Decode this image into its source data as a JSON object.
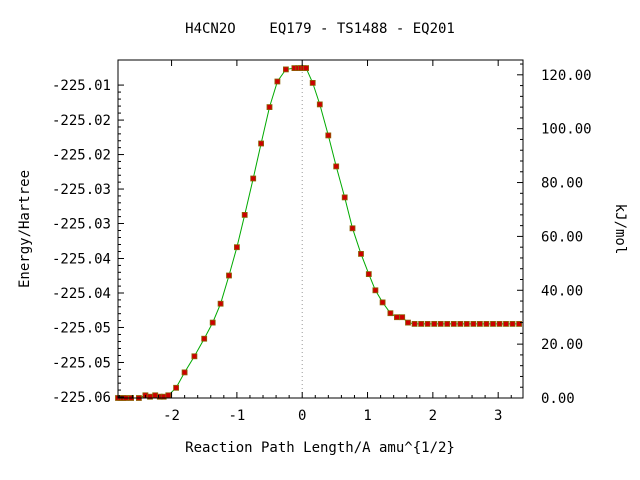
{
  "chart_data": {
    "type": "line",
    "title": "H4CN2O    EQ179 - TS1488 - EQ201",
    "xlabel": "Reaction Path Length/A amu^{1/2}",
    "ylabel": "Energy/Hartree",
    "y2label": "kJ/mol",
    "xlim": [
      -2.82,
      3.38
    ],
    "ylim": [
      -225.0645,
      -224.9998
    ],
    "y2lim": [
      0.0,
      125.5
    ],
    "x_ticks": [
      -2,
      -1,
      0,
      1,
      2,
      3
    ],
    "x_tick_labels": [
      "-2",
      "-1",
      "0",
      "1",
      "2",
      "3"
    ],
    "y_tick_labels": [
      "-225.01",
      "-225.02",
      "-225.02",
      "-225.03",
      "-225.03",
      "-225.04",
      "-225.04",
      "-225.05",
      "-225.05",
      "-225.06"
    ],
    "y_tick_values": [
      -225.0046,
      -225.0113,
      -225.0179,
      -225.0245,
      -225.0311,
      -225.0378,
      -225.0444,
      -225.051,
      -225.0577,
      -225.0643
    ],
    "y2_ticks": [
      0,
      20,
      40,
      60,
      80,
      100,
      120
    ],
    "y2_tick_labels": [
      "0.00",
      "20.00",
      "40.00",
      "60.00",
      "80.00",
      "100.00",
      "120.00"
    ],
    "vertical_marker_x": 0,
    "line_color": "#00aa00",
    "marker_color": "#cc0000",
    "marker_edge_color": "#8b6508",
    "marker_line_color": "#999999",
    "series": [
      {
        "x": [
          -2.82,
          -2.78,
          -2.74,
          -2.7,
          -2.62,
          -2.5,
          -2.4,
          -2.33,
          -2.25,
          -2.18,
          -2.12,
          -2.05,
          -1.93,
          -1.8,
          -1.65,
          -1.5,
          -1.37,
          -1.25,
          -1.12,
          -1.0,
          -0.88,
          -0.75,
          -0.63,
          -0.5,
          -0.38,
          -0.25,
          -0.12,
          -0.06,
          -0.02,
          0.02,
          0.06,
          0.16,
          0.27,
          0.4,
          0.52,
          0.65,
          0.77,
          0.9,
          1.02,
          1.12,
          1.23,
          1.35,
          1.45,
          1.53,
          1.62,
          1.72,
          1.82,
          1.92,
          2.02,
          2.12,
          2.22,
          2.32,
          2.42,
          2.52,
          2.62,
          2.72,
          2.82,
          2.92,
          3.02,
          3.12,
          3.22,
          3.32
        ],
        "y": [
          0.0,
          0.0,
          0.0,
          0.0,
          0.0,
          0.0,
          1.0,
          0.5,
          1.0,
          0.5,
          0.5,
          1.0,
          3.8,
          9.5,
          15.5,
          22.0,
          28.0,
          35.0,
          45.5,
          56.0,
          68.0,
          81.5,
          94.5,
          108.0,
          117.5,
          122.0,
          122.5,
          122.5,
          122.5,
          122.5,
          122.5,
          117.0,
          109.0,
          97.5,
          86.0,
          74.5,
          63.0,
          53.5,
          46.0,
          40.0,
          35.5,
          31.5,
          30.0,
          30.0,
          28.0,
          27.5,
          27.5,
          27.5,
          27.5,
          27.5,
          27.5,
          27.5,
          27.5,
          27.5,
          27.5,
          27.5,
          27.5,
          27.5,
          27.5,
          27.5,
          27.5,
          27.5
        ]
      }
    ]
  }
}
